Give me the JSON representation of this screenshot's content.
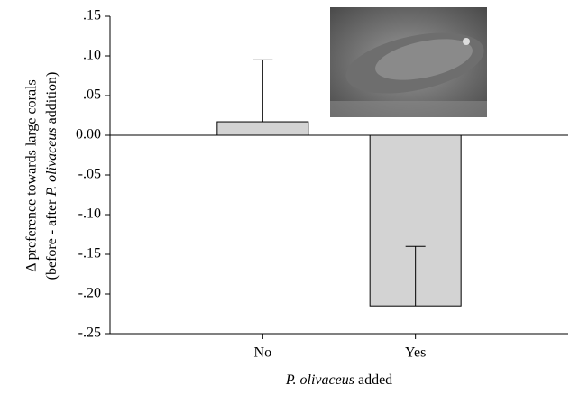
{
  "chart_data": {
    "type": "bar",
    "categories": [
      "No",
      "Yes"
    ],
    "values": [
      0.017,
      -0.215
    ],
    "errors": [
      0.078,
      0.075
    ],
    "color": "#d3d3d3",
    "ylim": [
      -0.25,
      0.15
    ],
    "yticks": [
      {
        "value": -0.25,
        "label": "-.25"
      },
      {
        "value": -0.2,
        "label": "-.20"
      },
      {
        "value": -0.15,
        "label": "-.15"
      },
      {
        "value": -0.1,
        "label": "-.10"
      },
      {
        "value": -0.05,
        "label": "-.05"
      },
      {
        "value": 0,
        "label": "0.00"
      },
      {
        "value": 0.05,
        "label": ".05"
      },
      {
        "value": 0.1,
        "label": ".10"
      },
      {
        "value": 0.15,
        "label": ".15"
      }
    ],
    "y_label": {
      "line1": "Δ preference towards large corals",
      "line2": [
        "(before - after ",
        "P. olivaceus",
        " addition)"
      ]
    },
    "x_label": [
      "P. olivaceus",
      " added"
    ]
  }
}
